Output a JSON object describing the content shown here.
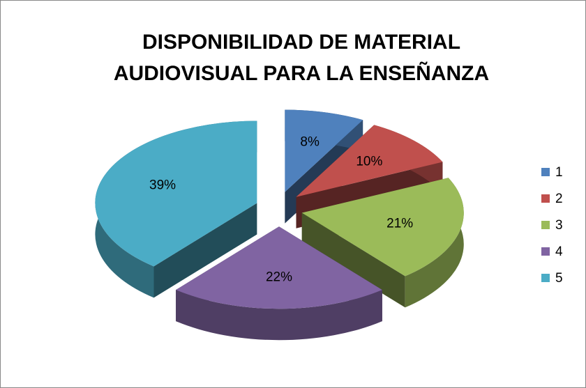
{
  "chart_data": {
    "type": "pie",
    "title": "DISPONIBILIDAD DE MATERIAL AUDIOVISUAL PARA LA ENSEÑANZA",
    "categories": [
      "1",
      "2",
      "3",
      "4",
      "5"
    ],
    "values": [
      8,
      10,
      21,
      22,
      39
    ],
    "value_labels": [
      "8%",
      "10%",
      "21%",
      "22%",
      "39%"
    ],
    "colors": [
      "#4f81bd",
      "#c0504d",
      "#9bbb59",
      "#8064a2",
      "#4bacc6"
    ],
    "legend": "right"
  }
}
